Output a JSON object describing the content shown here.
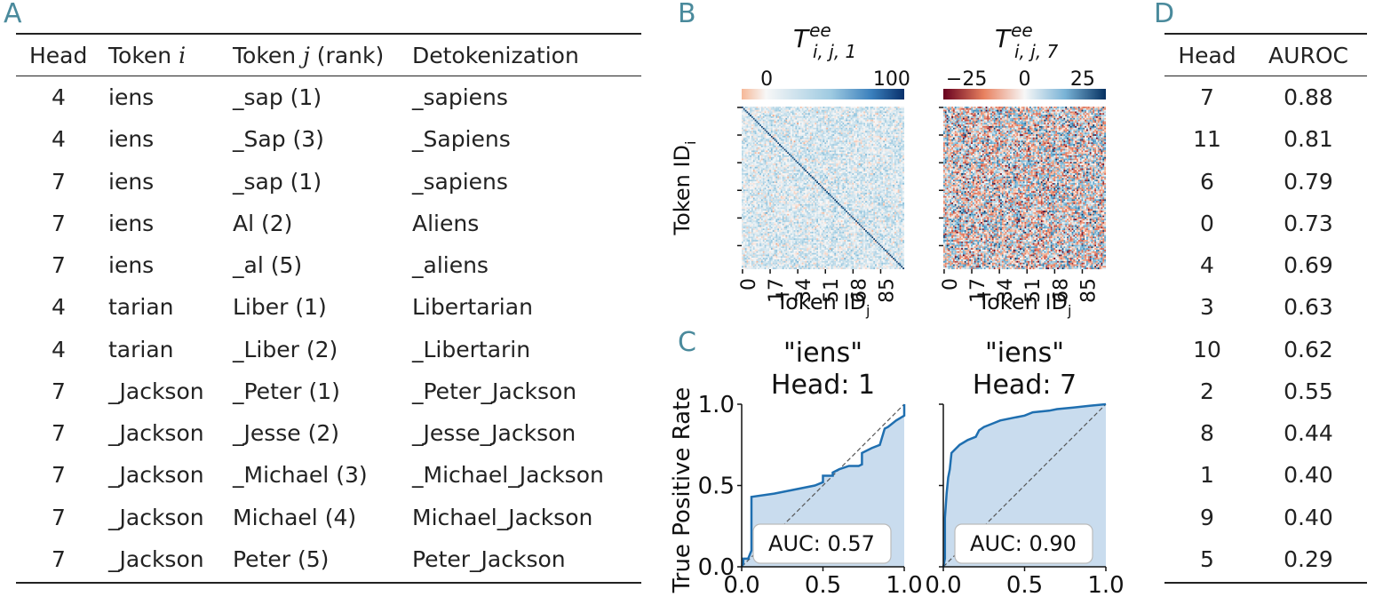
{
  "panels": {
    "A": "A",
    "B": "B",
    "C": "C",
    "D": "D"
  },
  "table_a": {
    "headers": [
      "Head",
      "Token i",
      "Token j (rank)",
      "Detokenization"
    ],
    "header_parts": {
      "token_i_prefix": "Token ",
      "token_i_var": "i",
      "token_j_prefix": "Token ",
      "token_j_var": "j",
      "token_j_suffix": " (rank)"
    },
    "rows": [
      [
        "4",
        "iens",
        "_sap (1)",
        "_sapiens"
      ],
      [
        "4",
        "iens",
        "_Sap (3)",
        "_Sapiens"
      ],
      [
        "7",
        "iens",
        "_sap (1)",
        "_sapiens"
      ],
      [
        "7",
        "iens",
        "Al (2)",
        "Aliens"
      ],
      [
        "7",
        "iens",
        "_al (5)",
        "_aliens"
      ],
      [
        "4",
        "tarian",
        "Liber (1)",
        "Libertarian"
      ],
      [
        "4",
        "tarian",
        "_Liber (2)",
        "_Libertarin"
      ],
      [
        "7",
        "_Jackson",
        "_Peter (1)",
        "_Peter_Jackson"
      ],
      [
        "7",
        "_Jackson",
        "_Jesse (2)",
        "_Jesse_Jackson"
      ],
      [
        "7",
        "_Jackson",
        "_Michael (3)",
        "_Michael_Jackson"
      ],
      [
        "7",
        "_Jackson",
        "Michael (4)",
        "Michael_Jackson"
      ],
      [
        "7",
        "_Jackson",
        "Peter (5)",
        "Peter_Jackson"
      ]
    ]
  },
  "table_d": {
    "headers": [
      "Head",
      "AUROC"
    ],
    "rows": [
      [
        "7",
        "0.88"
      ],
      [
        "11",
        "0.81"
      ],
      [
        "6",
        "0.79"
      ],
      [
        "0",
        "0.73"
      ],
      [
        "4",
        "0.69"
      ],
      [
        "3",
        "0.63"
      ],
      [
        "10",
        "0.62"
      ],
      [
        "2",
        "0.55"
      ],
      [
        "8",
        "0.44"
      ],
      [
        "1",
        "0.40"
      ],
      [
        "9",
        "0.40"
      ],
      [
        "5",
        "0.29"
      ]
    ]
  },
  "chart_data": [
    {
      "type": "heatmap",
      "title": "T^ee_{i,j,1}",
      "title_parts": {
        "base": "T",
        "sup": "ee",
        "sub": "i, j, 1"
      },
      "colorbar_ticks": [
        "0",
        "100"
      ],
      "colorbar_range": [
        -20,
        110
      ],
      "colormap": "RdBu",
      "xlabel": "Token ID_j",
      "xlabel_parts": {
        "base": "Token ID",
        "sub": "j"
      },
      "ylabel": "Token ID_i",
      "ylabel_parts": {
        "base": "Token ID",
        "sub": "i"
      },
      "xticks": [
        "0",
        "17",
        "34",
        "51",
        "68",
        "85"
      ],
      "n_tokens": 100,
      "pattern": "strong positive diagonal on weak noise"
    },
    {
      "type": "heatmap",
      "title": "T^ee_{i,j,7}",
      "title_parts": {
        "base": "T",
        "sup": "ee",
        "sub": "i, j, 7"
      },
      "colorbar_ticks": [
        "−25",
        "0",
        "25"
      ],
      "colorbar_range": [
        -35,
        35
      ],
      "colormap": "RdBu",
      "xlabel": "Token ID_j",
      "xlabel_parts": {
        "base": "Token ID",
        "sub": "j"
      },
      "xticks": [
        "0",
        "17",
        "34",
        "51",
        "68",
        "85"
      ],
      "n_tokens": 100,
      "pattern": "strong mixed noise"
    },
    {
      "type": "line",
      "title_line1": "\"iens\"",
      "title_line2": "Head: 1",
      "ylabel": "True Positive Rate",
      "xticks": [
        "0.0",
        "0.5",
        "1.0"
      ],
      "yticks": [
        "0.0",
        "0.5",
        "1.0"
      ],
      "xlim": [
        0,
        1
      ],
      "ylim": [
        0,
        1
      ],
      "annotation": "AUC: 0.57",
      "series": [
        {
          "x": [
            0,
            0.01,
            0.01,
            0.04,
            0.06,
            0.06,
            0.2,
            0.3,
            0.45,
            0.5,
            0.5,
            0.56,
            0.56,
            0.6,
            0.66,
            0.72,
            0.74,
            0.74,
            0.8,
            0.85,
            0.88,
            0.9,
            0.95,
            1.0,
            1.0
          ],
          "y": [
            0,
            0.02,
            0.05,
            0.05,
            0.1,
            0.43,
            0.45,
            0.47,
            0.5,
            0.52,
            0.56,
            0.56,
            0.58,
            0.6,
            0.62,
            0.62,
            0.63,
            0.7,
            0.73,
            0.75,
            0.85,
            0.86,
            0.9,
            0.93,
            1.0
          ]
        }
      ]
    },
    {
      "type": "line",
      "title_line1": "\"iens\"",
      "title_line2": "Head: 7",
      "xticks": [
        "0.0",
        "0.5",
        "1.0"
      ],
      "xlim": [
        0,
        1
      ],
      "ylim": [
        0,
        1
      ],
      "annotation": "AUC: 0.90",
      "series": [
        {
          "x": [
            0,
            0.01,
            0.01,
            0.02,
            0.03,
            0.04,
            0.05,
            0.07,
            0.1,
            0.15,
            0.2,
            0.22,
            0.25,
            0.3,
            0.35,
            0.45,
            0.5,
            0.55,
            0.65,
            0.7,
            0.8,
            0.9,
            1.0
          ],
          "y": [
            0,
            0.05,
            0.3,
            0.45,
            0.55,
            0.6,
            0.7,
            0.72,
            0.75,
            0.78,
            0.8,
            0.84,
            0.86,
            0.88,
            0.9,
            0.92,
            0.93,
            0.95,
            0.96,
            0.97,
            0.98,
            0.99,
            1.0
          ]
        }
      ]
    }
  ]
}
